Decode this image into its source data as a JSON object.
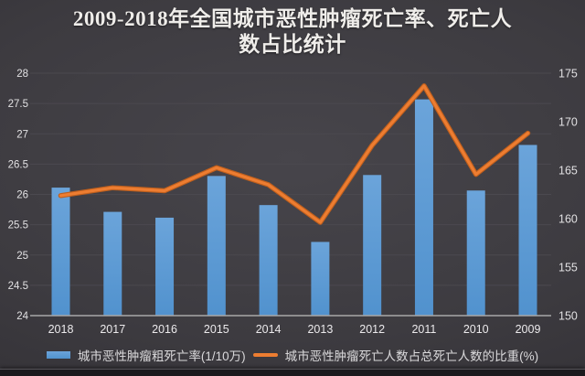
{
  "title": {
    "full": "2009-2018年全国城市恶性肿瘤死亡率、死亡人数占比统计",
    "line1": "2009-2018年全国城市恶性肿瘤死亡率、死亡人",
    "line2": "数占比统计"
  },
  "colors": {
    "background_center": "#47454b",
    "background_edge": "#232125",
    "bar": "#5b9bd5",
    "bar_top": "#6ba4da",
    "bar_bottom": "#5192ce",
    "line": "#ed7d31",
    "line_edge": "#bf5f1d",
    "gridline": "#4b494f",
    "axis_line": "#a8a8a8",
    "tick_text": "#e2e1e3",
    "year_text": "#eceaec",
    "title_text": "#efedea",
    "legend_text": "#dad9db"
  },
  "chart_data": {
    "type": "combo",
    "title": "2009-2018年全国城市恶性肿瘤死亡率、死亡人数占比统计",
    "categories": [
      "2018",
      "2017",
      "2016",
      "2015",
      "2014",
      "2013",
      "2012",
      "2011",
      "2010",
      "2009"
    ],
    "series": [
      {
        "name": "城市恶性肿瘤粗死亡率(1/10万)",
        "type": "bar",
        "axis": "right",
        "color": "#5b9bd5",
        "values": [
          163.2,
          160.7,
          160.1,
          164.4,
          161.4,
          157.6,
          164.5,
          172.3,
          162.9,
          167.6
        ]
      },
      {
        "name": "城市恶性肿瘤死亡人数占总死亡人数的比重(%)",
        "type": "line",
        "axis": "left",
        "color": "#ed7d31",
        "values": [
          25.98,
          26.11,
          26.06,
          26.44,
          26.16,
          25.54,
          26.81,
          27.79,
          26.33,
          27.01
        ]
      }
    ],
    "left_axis": {
      "min": 24,
      "max": 28,
      "step": 0.5,
      "tick_labels": [
        "28",
        "27.5",
        "27",
        "26.5",
        "26",
        "25.5",
        "25",
        "24.5",
        "24"
      ]
    },
    "right_axis": {
      "min": 150,
      "max": 175,
      "step": 5,
      "tick_labels": [
        "175",
        "170",
        "165",
        "160",
        "155",
        "150"
      ]
    },
    "grid": "horizontal gridlines at every 0.5 of left axis",
    "legend_position": "bottom"
  },
  "legend": {
    "items": [
      {
        "label": "城市恶性肿瘤粗死亡率(1/10万)",
        "swatch": "bar",
        "color": "#5b9bd5"
      },
      {
        "label": "城市恶性肿瘤死亡人数占总死亡人数的比重(%)",
        "swatch": "line",
        "color": "#ed7d31"
      }
    ]
  }
}
